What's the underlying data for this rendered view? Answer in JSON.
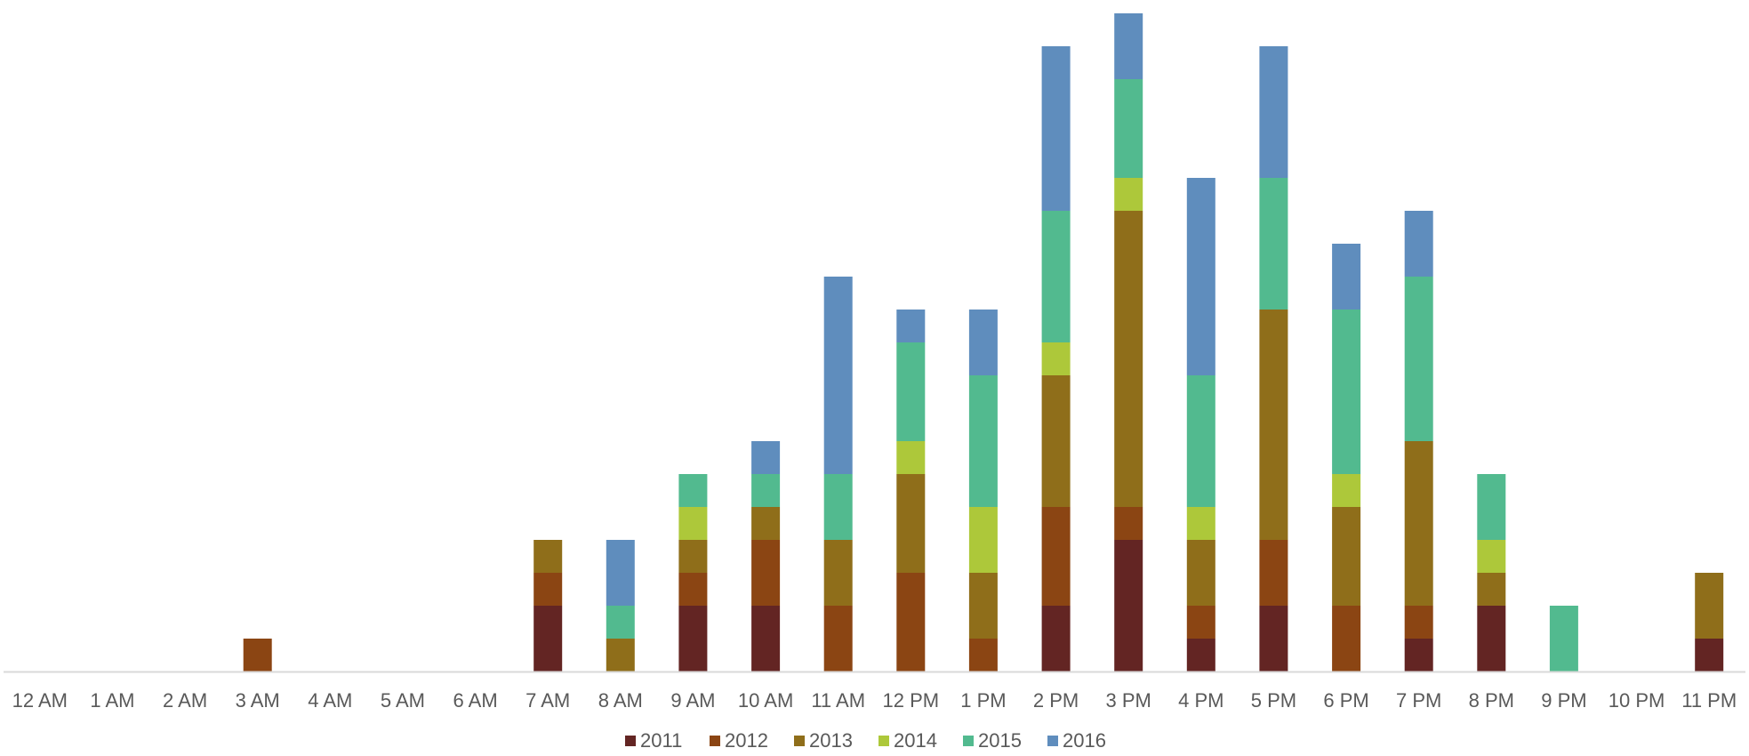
{
  "chart_data": {
    "type": "bar",
    "stacked": true,
    "categories": [
      "12 AM",
      "1 AM",
      "2 AM",
      "3 AM",
      "4 AM",
      "5 AM",
      "6 AM",
      "7 AM",
      "8 AM",
      "9 AM",
      "10 AM",
      "11 AM",
      "12 PM",
      "1 PM",
      "2 PM",
      "3 PM",
      "4 PM",
      "5 PM",
      "6 PM",
      "7 PM",
      "8 PM",
      "9 PM",
      "10 PM",
      "11 PM"
    ],
    "series": [
      {
        "name": "2011",
        "color": "#632523",
        "values": [
          0,
          0,
          0,
          0,
          0,
          0,
          0,
          2,
          0,
          2,
          2,
          0,
          0,
          0,
          2,
          4,
          1,
          2,
          0,
          1,
          2,
          0,
          0,
          1
        ]
      },
      {
        "name": "2012",
        "color": "#8B4513",
        "values": [
          0,
          0,
          0,
          1,
          0,
          0,
          0,
          1,
          0,
          1,
          2,
          2,
          3,
          1,
          3,
          1,
          1,
          2,
          2,
          1,
          0,
          0,
          0,
          0
        ]
      },
      {
        "name": "2013",
        "color": "#8F6E1A",
        "values": [
          0,
          0,
          0,
          0,
          0,
          0,
          0,
          1,
          1,
          1,
          1,
          2,
          3,
          2,
          4,
          9,
          2,
          7,
          3,
          5,
          1,
          0,
          0,
          2
        ]
      },
      {
        "name": "2014",
        "color": "#ADC83A",
        "values": [
          0,
          0,
          0,
          0,
          0,
          0,
          0,
          0,
          0,
          1,
          0,
          0,
          1,
          2,
          1,
          1,
          1,
          0,
          1,
          0,
          1,
          0,
          0,
          0
        ]
      },
      {
        "name": "2015",
        "color": "#52BA8F",
        "values": [
          0,
          0,
          0,
          0,
          0,
          0,
          0,
          0,
          1,
          1,
          1,
          2,
          3,
          4,
          4,
          3,
          4,
          4,
          5,
          5,
          2,
          2,
          0,
          0
        ]
      },
      {
        "name": "2016",
        "color": "#5F8DBD",
        "values": [
          0,
          0,
          0,
          0,
          0,
          0,
          0,
          0,
          2,
          0,
          1,
          6,
          1,
          2,
          5,
          2,
          6,
          4,
          2,
          2,
          0,
          0,
          0,
          0
        ]
      }
    ],
    "ylim": [
      0,
      20
    ],
    "grid": false,
    "legend_position": "bottom",
    "axis_color": "#D9D9D9"
  }
}
